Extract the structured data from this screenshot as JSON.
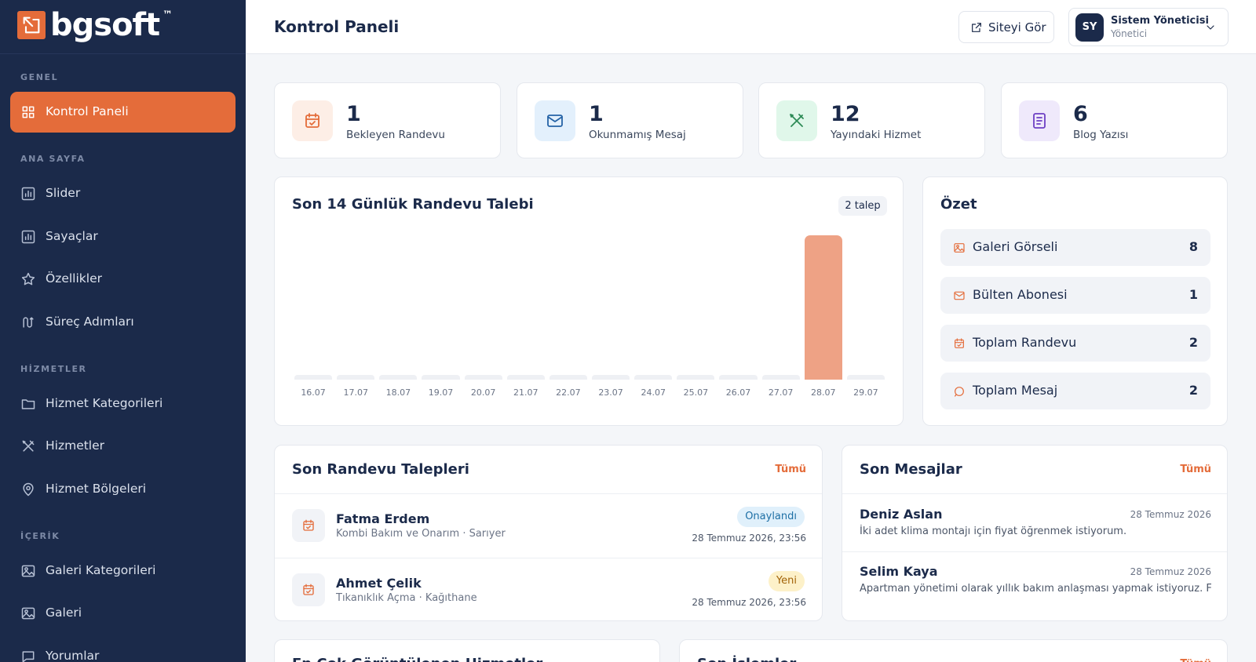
{
  "sidebar": {
    "brand": "bgsoft",
    "trademark": "™",
    "sections": [
      {
        "title": "GENEL",
        "items": [
          "Kontrol Paneli"
        ]
      },
      {
        "title": "ANA SAYFA",
        "items": [
          "Slider",
          "Sayaçlar",
          "Özellikler",
          "Süreç Adımları"
        ]
      },
      {
        "title": "HİZMETLER",
        "items": [
          "Hizmet Kategorileri",
          "Hizmetler",
          "Hizmet Bölgeleri"
        ]
      },
      {
        "title": "İÇERİK",
        "items": [
          "Galeri Kategorileri",
          "Galeri",
          "Yorumlar"
        ]
      }
    ]
  },
  "header": {
    "title": "Kontrol Paneli",
    "view_site": "Siteyi Gör",
    "user": {
      "initials": "SY",
      "name": "Sistem Yöneticisi",
      "role": "Yönetici"
    }
  },
  "stats": [
    {
      "value": 1,
      "label": "Bekleyen Randevu"
    },
    {
      "value": 1,
      "label": "Okunmamış Mesaj"
    },
    {
      "value": 12,
      "label": "Yayındaki Hizmet"
    },
    {
      "value": 6,
      "label": "Blog Yazısı"
    }
  ],
  "chart_data": {
    "type": "bar",
    "title": "Son 14 Günlük Randevu Talebi",
    "badge": "2 talep",
    "categories": [
      "16.07",
      "17.07",
      "18.07",
      "19.07",
      "20.07",
      "21.07",
      "22.07",
      "23.07",
      "24.07",
      "25.07",
      "26.07",
      "27.07",
      "28.07",
      "29.07"
    ],
    "values": [
      0,
      0,
      0,
      0,
      0,
      0,
      0,
      0,
      0,
      0,
      0,
      0,
      2,
      0
    ],
    "color": "#eea285"
  },
  "summary": {
    "title": "Özet",
    "items": [
      {
        "label": "Galeri Görseli",
        "value": 8
      },
      {
        "label": "Bülten Abonesi",
        "value": 1
      },
      {
        "label": "Toplam Randevu",
        "value": 2
      },
      {
        "label": "Toplam Mesaj",
        "value": 2
      }
    ]
  },
  "appointments": {
    "title": "Son Randevu Talepleri",
    "link": "Tümü",
    "items": [
      {
        "name": "Fatma Erdem",
        "detail": "Kombi Bakım ve Onarım · Sarıyer",
        "status": "Onaylandı",
        "date": "28 Temmuz 2026, 23:56"
      },
      {
        "name": "Ahmet Çelik",
        "detail": "Tıkanıklık Açma · Kağıthane",
        "status": "Yeni",
        "date": "28 Temmuz 2026, 23:56"
      }
    ]
  },
  "messages": {
    "title": "Son Mesajlar",
    "link": "Tümü",
    "items": [
      {
        "name": "Deniz Aslan",
        "date": "28 Temmuz 2026",
        "text": "İki adet klima montajı için fiyat öğrenmek istiyorum."
      },
      {
        "name": "Selim Kaya",
        "date": "28 Temmuz 2026",
        "text": "Apartman yönetimi olarak yıllık bakım anlaşması yapmak istiyoruz. Fiya..."
      }
    ]
  },
  "bottom": [
    {
      "title": "En Çok Görüntülenen Hizmetler"
    },
    {
      "title": "Son İşlemler",
      "link": "Tümü"
    }
  ]
}
